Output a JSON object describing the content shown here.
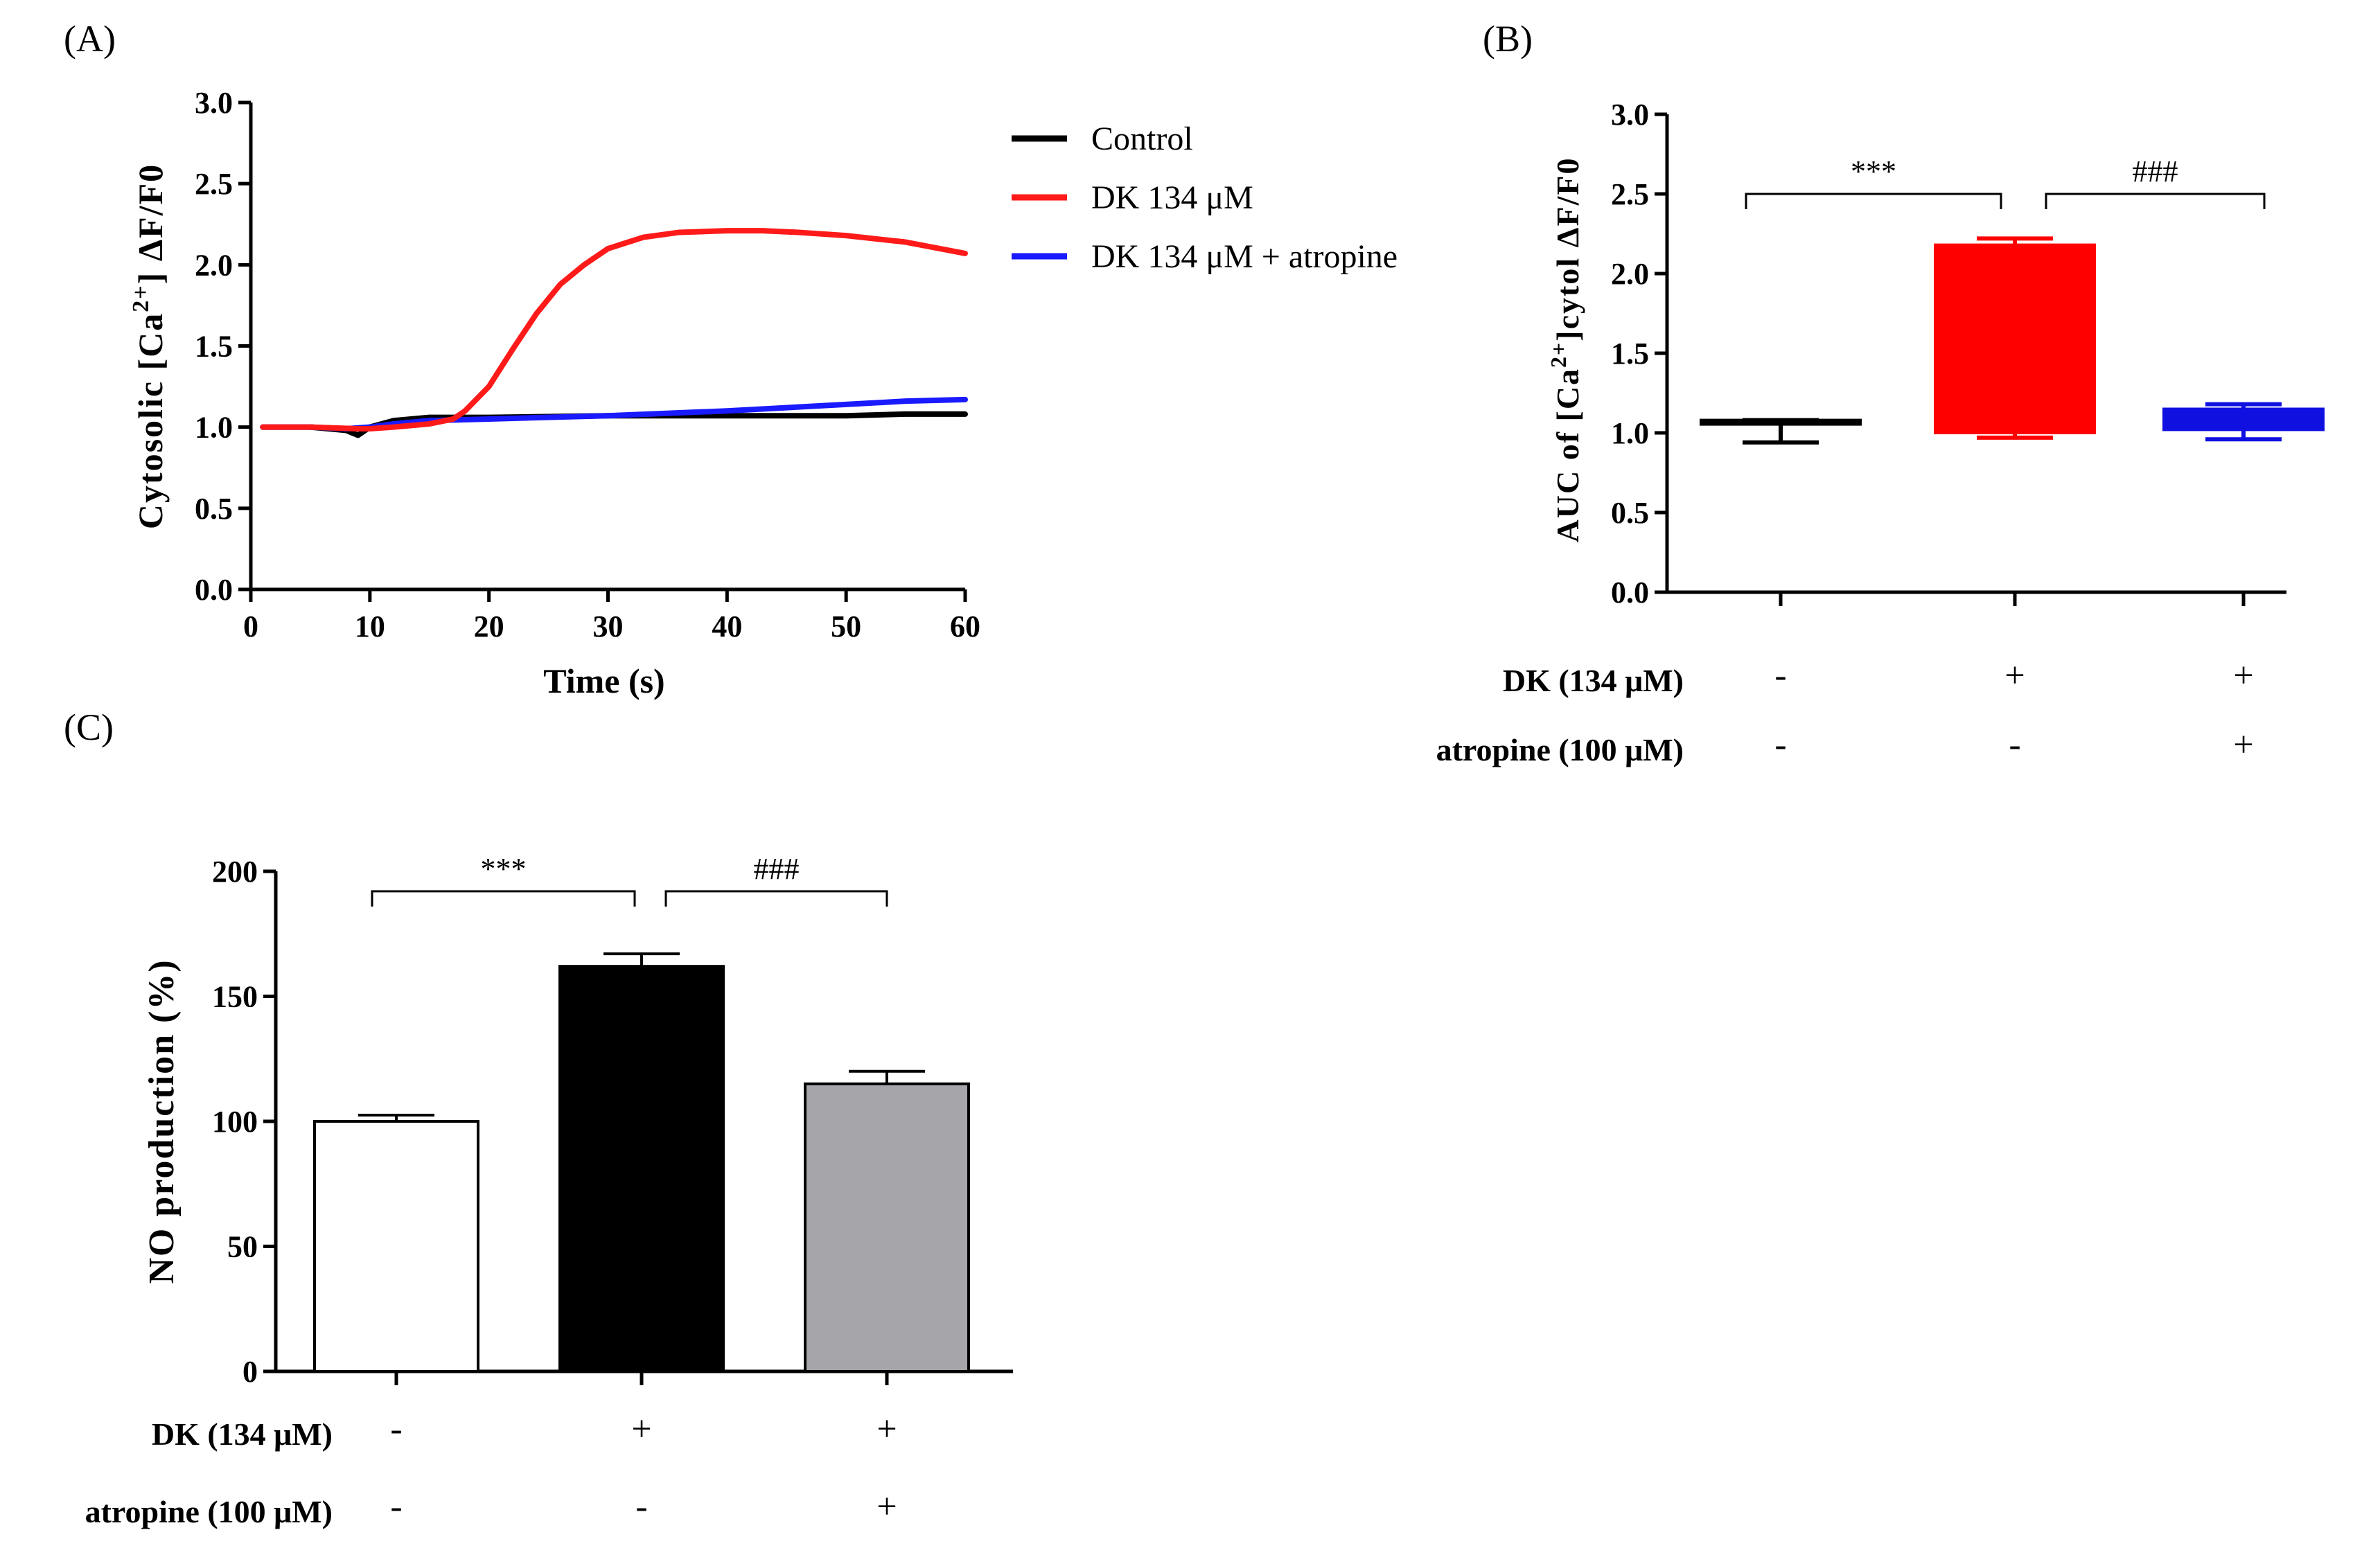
{
  "panels": {
    "a": {
      "label": "(A)"
    },
    "b": {
      "label": "(B)"
    },
    "c": {
      "label": "(C)"
    }
  },
  "chart_data": [
    {
      "type": "line",
      "panel": "(A)",
      "title": "",
      "xlabel": "Time (s)",
      "ylabel_parts": {
        "pre": "Cytosolic [Ca",
        "sup": "2+",
        "post": "] ΔF/F0"
      },
      "xlim": [
        0,
        60
      ],
      "ylim": [
        0,
        3.0
      ],
      "xticks": [
        "0",
        "10",
        "20",
        "30",
        "40",
        "50",
        "60"
      ],
      "yticks": [
        "0.0",
        "0.5",
        "1.0",
        "1.5",
        "2.0",
        "2.5",
        "3.0"
      ],
      "legend_position": "top-right, outside plot area",
      "series": [
        {
          "name": "Control",
          "color": "#000000",
          "x": [
            1,
            5,
            8,
            9,
            10,
            12,
            15,
            20,
            30,
            40,
            50,
            55,
            60
          ],
          "y": [
            1.0,
            1.0,
            0.98,
            0.95,
            1.0,
            1.04,
            1.06,
            1.06,
            1.07,
            1.07,
            1.07,
            1.08,
            1.08
          ]
        },
        {
          "name": "DK 134 μM",
          "color": "#ff1a1a",
          "x": [
            1,
            5,
            9,
            10,
            12,
            15,
            17,
            18,
            20,
            22,
            24,
            26,
            28,
            30,
            33,
            36,
            40,
            43,
            46,
            50,
            55,
            60
          ],
          "y": [
            1.0,
            1.0,
            0.99,
            0.99,
            1.0,
            1.02,
            1.05,
            1.1,
            1.25,
            1.48,
            1.7,
            1.88,
            2.0,
            2.1,
            2.17,
            2.2,
            2.21,
            2.21,
            2.2,
            2.18,
            2.14,
            2.07
          ]
        },
        {
          "name": "DK 134 μM + atropine",
          "color": "#1a1aff",
          "x": [
            1,
            5,
            8,
            10,
            12,
            15,
            20,
            30,
            40,
            50,
            55,
            60
          ],
          "y": [
            1.0,
            1.0,
            0.99,
            1.0,
            1.02,
            1.04,
            1.05,
            1.07,
            1.1,
            1.14,
            1.16,
            1.17
          ]
        }
      ]
    },
    {
      "type": "box",
      "panel": "(B)",
      "title": "",
      "ylabel_parts": {
        "pre": "AUC of [Ca",
        "sup": "2+",
        "post": "]cytol ΔF/F0"
      },
      "ylim": [
        0,
        3.0
      ],
      "yticks": [
        "0.0",
        "0.5",
        "1.0",
        "1.5",
        "2.0",
        "2.5",
        "3.0"
      ],
      "groups": [
        {
          "color": "#000000",
          "min": 0.94,
          "q1": 1.06,
          "median": 1.07,
          "q3": 1.08,
          "max": 1.08
        },
        {
          "color": "#ff0000",
          "min": 0.97,
          "q1": 1.0,
          "median": 1.02,
          "q3": 2.18,
          "max": 2.22
        },
        {
          "color": "#1010e0",
          "min": 0.96,
          "q1": 1.02,
          "median": 1.1,
          "q3": 1.15,
          "max": 1.18
        }
      ],
      "significance": [
        {
          "label": "***",
          "from": 0,
          "to": 1,
          "level": 2.5
        },
        {
          "label": "###",
          "from": 1,
          "to": 2,
          "level": 2.5
        }
      ],
      "treatments": [
        {
          "label": "DK (134 μM)",
          "signs": [
            "-",
            "+",
            "+"
          ]
        },
        {
          "label": "atropine (100 μM)",
          "signs": [
            "-",
            "-",
            "+"
          ]
        }
      ]
    },
    {
      "type": "bar",
      "panel": "(C)",
      "title": "",
      "ylabel": "NO production (%)",
      "ylim": [
        0,
        200
      ],
      "yticks": [
        "0",
        "50",
        "100",
        "150",
        "200"
      ],
      "values": [
        100,
        162,
        115
      ],
      "errors": [
        2.5,
        5,
        5
      ],
      "colors": [
        "#ffffff",
        "#000000",
        "#a6a6aa"
      ],
      "significance": [
        {
          "label": "***",
          "from": 0,
          "to": 1,
          "level": 192
        },
        {
          "label": "###",
          "from": 1,
          "to": 2,
          "level": 192
        }
      ],
      "treatments": [
        {
          "label": "DK (134 μM)",
          "signs": [
            "-",
            "+",
            "+"
          ]
        },
        {
          "label": "atropine (100 μM)",
          "signs": [
            "-",
            "-",
            "+"
          ]
        }
      ]
    }
  ]
}
